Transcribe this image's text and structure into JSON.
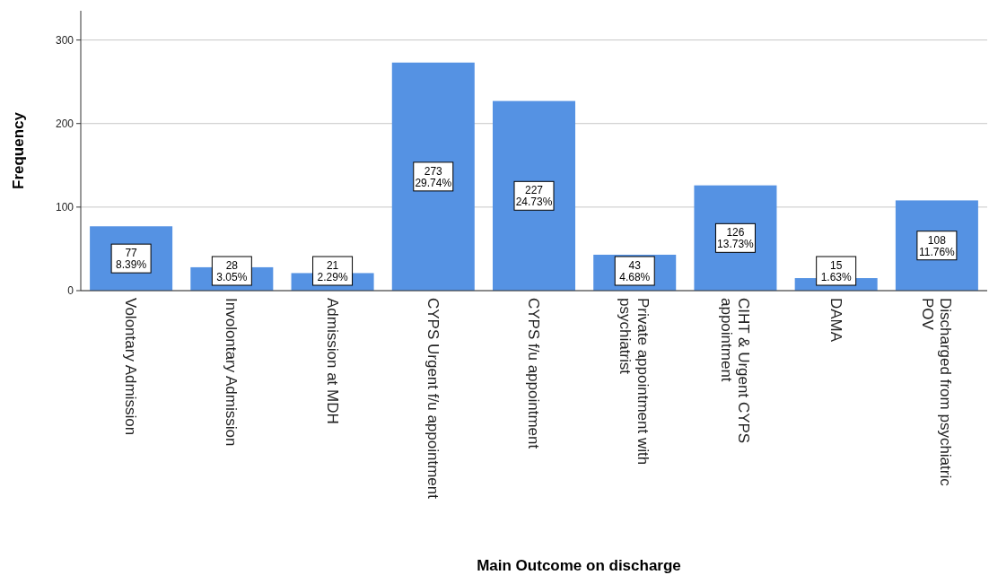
{
  "chart_data": {
    "type": "bar",
    "xlabel": "Main Outcome on discharge",
    "ylabel": "Frequency",
    "categories": [
      "Volontary Admission",
      "Involontary Admission",
      "Admission at MDH",
      "CYPS Urgent f/u appointment",
      "CYPS f/u appointment",
      "Private appointment with psychiatrist",
      "CIHT & Urgent CYPS appointment",
      "DAMA",
      "Discharged from psychiatric POV"
    ],
    "values": [
      77,
      28,
      21,
      273,
      227,
      43,
      126,
      15,
      108
    ],
    "value_labels": [
      "77\n8.39%",
      "28\n3.05%",
      "21\n2.29%",
      "273\n29.74%",
      "227\n24.73%",
      "43\n4.68%",
      "126\n13.73%",
      "15\n1.63%",
      "108\n11.76%"
    ],
    "color": "#5592e3",
    "ylim": [
      0,
      335
    ],
    "yticks": [
      0,
      100,
      200,
      300
    ],
    "grid": "y"
  }
}
